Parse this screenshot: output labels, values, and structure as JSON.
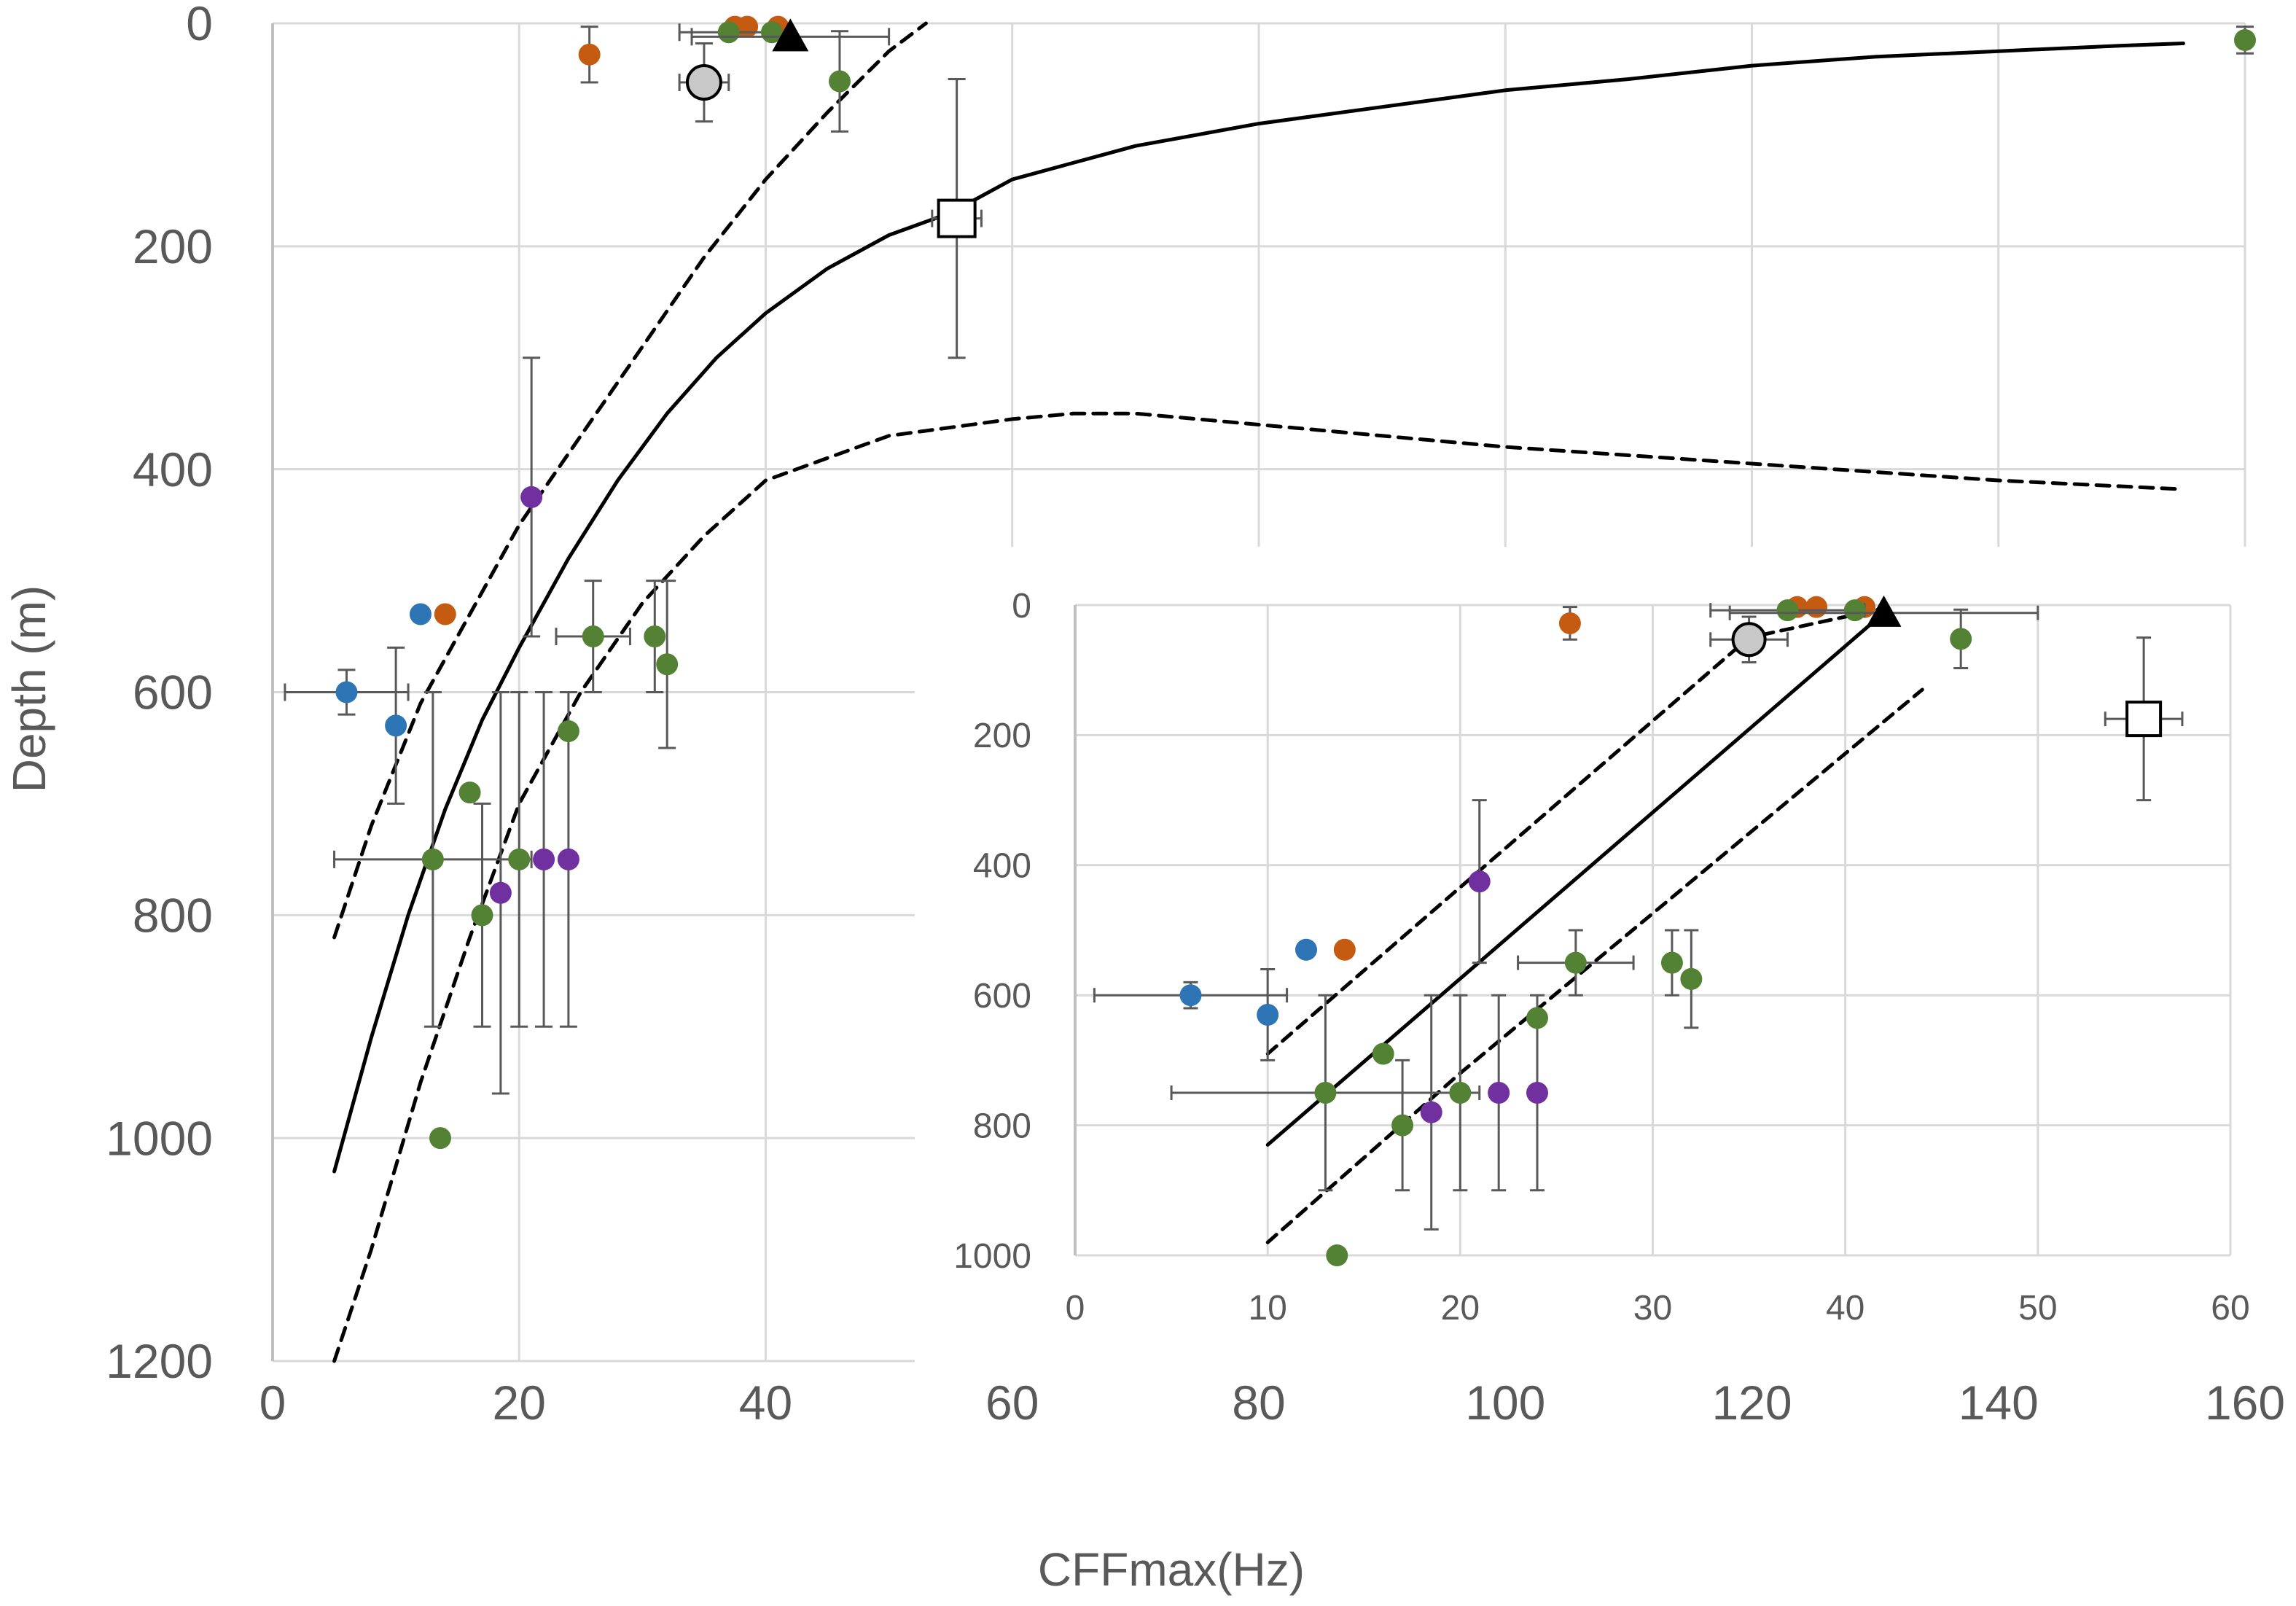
{
  "chart_data": [
    {
      "id": "main",
      "type": "scatter",
      "xlabel": "CFFmax(Hz)",
      "ylabel": "Depth (m)",
      "xlim": [
        0,
        160
      ],
      "ylim": [
        1200,
        0
      ],
      "x_ticks": [
        0,
        20,
        40,
        60,
        80,
        100,
        120,
        140,
        160
      ],
      "y_ticks": [
        0,
        200,
        400,
        600,
        800,
        1000,
        1200
      ],
      "grid": true,
      "series": [
        {
          "name": "blue",
          "color": "#2e75b6",
          "marker": "circle",
          "points": [
            {
              "x": 6,
              "y": 600,
              "xerr": 5,
              "yerr": 20
            },
            {
              "x": 10,
              "y": 630,
              "yerr": 70
            },
            {
              "x": 12,
              "y": 530
            }
          ]
        },
        {
          "name": "orange",
          "color": "#c55a11",
          "marker": "circle",
          "points": [
            {
              "x": 14,
              "y": 530
            },
            {
              "x": 25.7,
              "y": 28,
              "yerr": 25
            },
            {
              "x": 37.5,
              "y": 3
            },
            {
              "x": 38.5,
              "y": 3
            },
            {
              "x": 41,
              "y": 3
            }
          ]
        },
        {
          "name": "purple",
          "color": "#7030a0",
          "marker": "circle",
          "points": [
            {
              "x": 21,
              "y": 425,
              "yerr": 125
            },
            {
              "x": 18.5,
              "y": 780,
              "yerr": 180
            },
            {
              "x": 22,
              "y": 750,
              "yerr": 150
            },
            {
              "x": 24,
              "y": 750,
              "yerr": 150
            }
          ]
        },
        {
          "name": "green",
          "color": "#548235",
          "marker": "circle",
          "points": [
            {
              "x": 13,
              "y": 750,
              "xerr": 8,
              "yerr": 150
            },
            {
              "x": 13.6,
              "y": 1000
            },
            {
              "x": 16,
              "y": 690
            },
            {
              "x": 17,
              "y": 800,
              "yerr": 100
            },
            {
              "x": 20,
              "y": 750,
              "yerr": 150
            },
            {
              "x": 24,
              "y": 635
            },
            {
              "x": 26,
              "y": 550,
              "xerr": 3,
              "yerr": 50
            },
            {
              "x": 31,
              "y": 550,
              "yerr": 50
            },
            {
              "x": 32,
              "y": 575,
              "yerr": 75
            },
            {
              "x": 37,
              "y": 8,
              "xerr": 4
            },
            {
              "x": 40.5,
              "y": 8
            },
            {
              "x": 46,
              "y": 52,
              "yerr": 45
            },
            {
              "x": 160,
              "y": 15,
              "yerr": 12
            }
          ]
        },
        {
          "name": "gray circle",
          "color": "#c8c8c8",
          "marker": "circle-large",
          "points": [
            {
              "x": 35,
              "y": 53,
              "xerr": 2,
              "yerr": 35
            }
          ]
        },
        {
          "name": "black triangle",
          "color": "#000000",
          "marker": "triangle",
          "points": [
            {
              "x": 42,
              "y": 12,
              "xerr": 8
            }
          ]
        },
        {
          "name": "open square",
          "color": "#ffffff",
          "marker": "square",
          "points": [
            {
              "x": 55.5,
              "y": 175,
              "xerr": 2,
              "yerr": 125
            }
          ]
        }
      ],
      "fit": {
        "solid": [
          [
            5,
            1030
          ],
          [
            8,
            910
          ],
          [
            11,
            800
          ],
          [
            14,
            705
          ],
          [
            17,
            625
          ],
          [
            20,
            560
          ],
          [
            24,
            480
          ],
          [
            28,
            410
          ],
          [
            32,
            350
          ],
          [
            36,
            300
          ],
          [
            40,
            260
          ],
          [
            45,
            220
          ],
          [
            50,
            190
          ],
          [
            55,
            170
          ],
          [
            60,
            140
          ],
          [
            65,
            125
          ],
          [
            70,
            110
          ],
          [
            80,
            90
          ],
          [
            90,
            75
          ],
          [
            100,
            60
          ],
          [
            110,
            50
          ],
          [
            120,
            38
          ],
          [
            130,
            30
          ],
          [
            140,
            25
          ],
          [
            150,
            20
          ],
          [
            155,
            18
          ]
        ],
        "dash_upper": [
          [
            5,
            820
          ],
          [
            8,
            720
          ],
          [
            12,
            610
          ],
          [
            16,
            530
          ],
          [
            20,
            450
          ],
          [
            25,
            370
          ],
          [
            30,
            290
          ],
          [
            35,
            210
          ],
          [
            40,
            140
          ],
          [
            45,
            80
          ],
          [
            50,
            25
          ],
          [
            53,
            0
          ]
        ],
        "dash_lower": [
          [
            5,
            1200
          ],
          [
            8,
            1100
          ],
          [
            12,
            950
          ],
          [
            16,
            820
          ],
          [
            20,
            700
          ],
          [
            25,
            600
          ],
          [
            30,
            520
          ],
          [
            35,
            460
          ],
          [
            40,
            410
          ],
          [
            50,
            370
          ],
          [
            60,
            355
          ],
          [
            65,
            350
          ],
          [
            70,
            350
          ],
          [
            80,
            360
          ],
          [
            90,
            370
          ],
          [
            100,
            380
          ],
          [
            120,
            395
          ],
          [
            140,
            410
          ],
          [
            155,
            418
          ]
        ]
      }
    },
    {
      "id": "inset",
      "type": "scatter",
      "xlim": [
        0,
        60
      ],
      "ylim": [
        1000,
        0
      ],
      "x_ticks": [
        0,
        10,
        20,
        30,
        40,
        50,
        60
      ],
      "y_ticks": [
        0,
        200,
        400,
        600,
        800,
        1000
      ],
      "grid": true,
      "series": [
        {
          "name": "blue",
          "color": "#2e75b6",
          "marker": "circle",
          "points": [
            {
              "x": 6,
              "y": 600,
              "xerr": 5,
              "yerr": 20
            },
            {
              "x": 10,
              "y": 630,
              "yerr": 70
            },
            {
              "x": 12,
              "y": 530
            }
          ]
        },
        {
          "name": "orange",
          "color": "#c55a11",
          "marker": "circle",
          "points": [
            {
              "x": 14,
              "y": 530
            },
            {
              "x": 25.7,
              "y": 28,
              "yerr": 25
            },
            {
              "x": 37.5,
              "y": 3
            },
            {
              "x": 38.5,
              "y": 3
            },
            {
              "x": 41,
              "y": 3
            }
          ]
        },
        {
          "name": "purple",
          "color": "#7030a0",
          "marker": "circle",
          "points": [
            {
              "x": 21,
              "y": 425,
              "yerr": 125
            },
            {
              "x": 18.5,
              "y": 780,
              "yerr": 180
            },
            {
              "x": 22,
              "y": 750,
              "yerr": 150
            },
            {
              "x": 24,
              "y": 750,
              "yerr": 150
            }
          ]
        },
        {
          "name": "green",
          "color": "#548235",
          "marker": "circle",
          "points": [
            {
              "x": 13,
              "y": 750,
              "xerr": 8,
              "yerr": 150
            },
            {
              "x": 13.6,
              "y": 1000
            },
            {
              "x": 16,
              "y": 690
            },
            {
              "x": 17,
              "y": 800,
              "yerr": 100
            },
            {
              "x": 20,
              "y": 750,
              "yerr": 150
            },
            {
              "x": 24,
              "y": 635
            },
            {
              "x": 26,
              "y": 550,
              "xerr": 3,
              "yerr": 50
            },
            {
              "x": 31,
              "y": 550,
              "yerr": 50
            },
            {
              "x": 32,
              "y": 575,
              "yerr": 75
            },
            {
              "x": 37,
              "y": 8,
              "xerr": 4
            },
            {
              "x": 40.5,
              "y": 8
            },
            {
              "x": 46,
              "y": 52,
              "yerr": 45
            }
          ]
        },
        {
          "name": "gray circle",
          "color": "#c8c8c8",
          "marker": "circle-large",
          "points": [
            {
              "x": 35,
              "y": 53,
              "xerr": 2,
              "yerr": 35
            }
          ]
        },
        {
          "name": "black triangle",
          "color": "#000000",
          "marker": "triangle",
          "points": [
            {
              "x": 42,
              "y": 12,
              "xerr": 8
            }
          ]
        },
        {
          "name": "open square",
          "color": "#ffffff",
          "marker": "square",
          "points": [
            {
              "x": 55.5,
              "y": 175,
              "xerr": 2,
              "yerr": 125
            }
          ]
        }
      ],
      "fit": {
        "solid": [
          [
            10,
            830
          ],
          [
            42,
            12
          ]
        ],
        "dash_upper": [
          [
            10,
            690
          ],
          [
            35,
            50
          ],
          [
            42,
            5
          ]
        ],
        "dash_lower": [
          [
            10,
            980
          ],
          [
            20,
            720
          ],
          [
            44,
            130
          ]
        ]
      }
    }
  ]
}
